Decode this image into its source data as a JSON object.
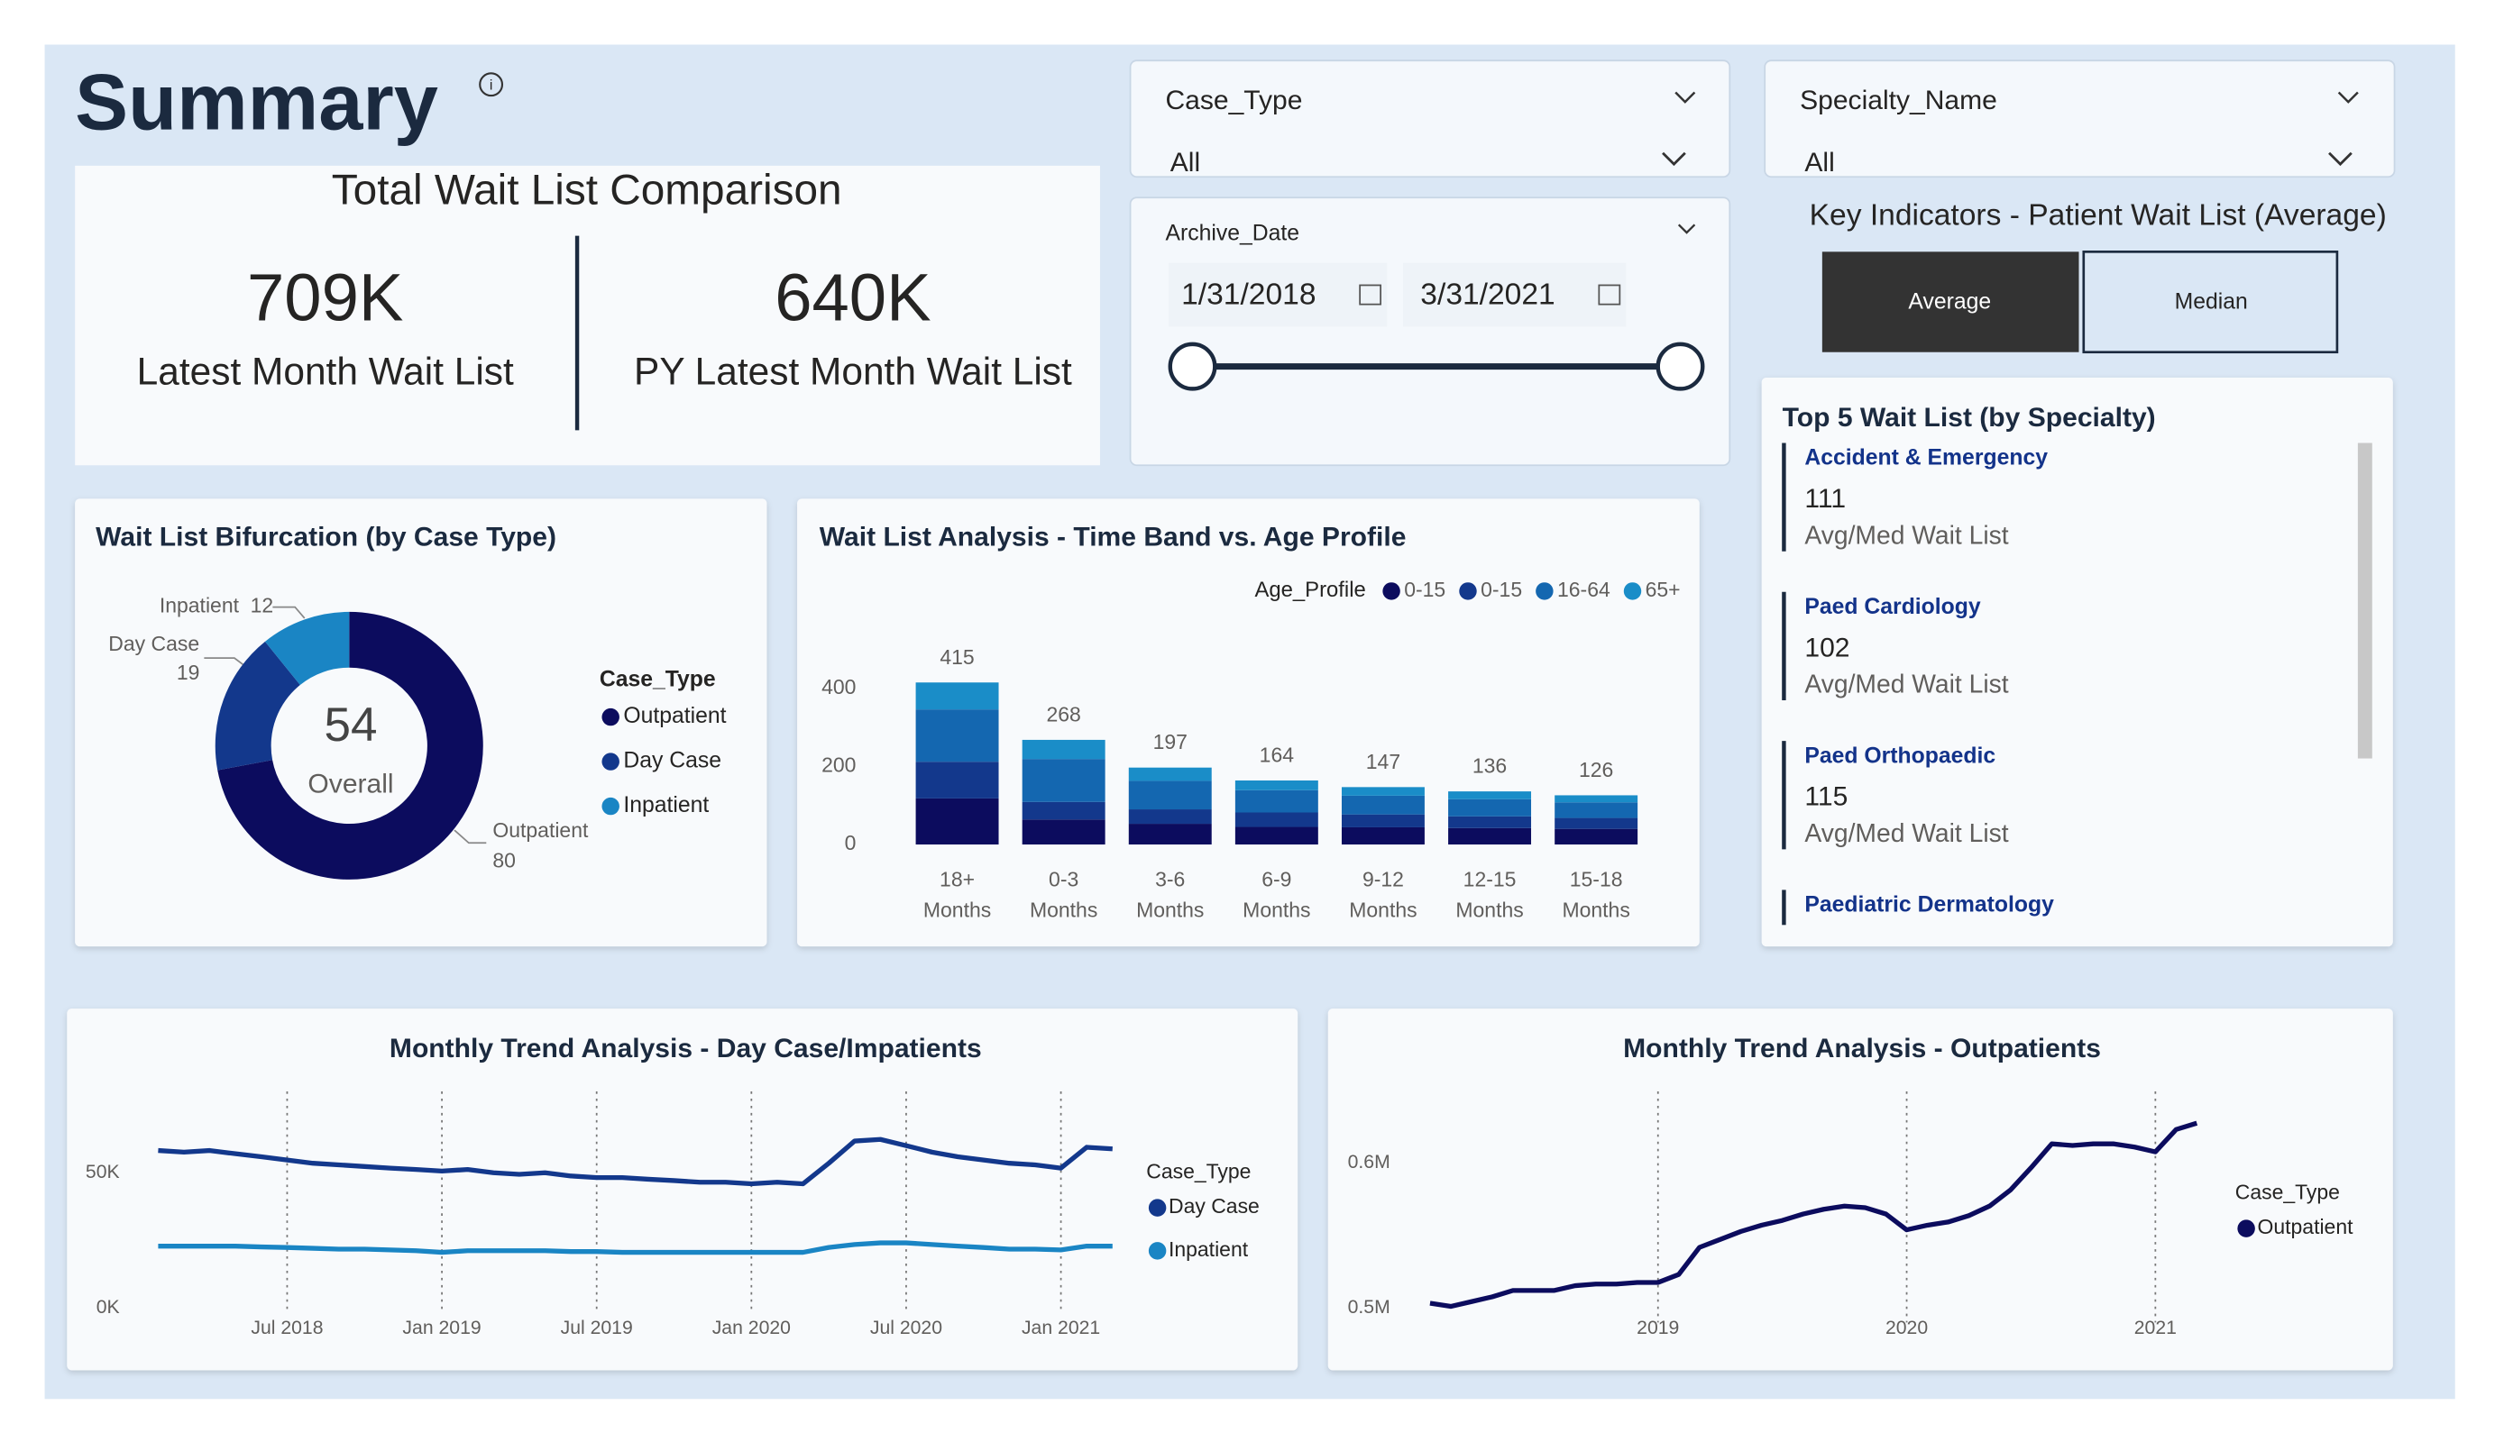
{
  "header": {
    "title": "Summary"
  },
  "kpi": {
    "title": "Total Wait List Comparison",
    "items": [
      {
        "value": "709K",
        "label": "Latest Month Wait List"
      },
      {
        "value": "640K",
        "label": "PY Latest Month Wait List"
      }
    ]
  },
  "filters": {
    "case_type": {
      "label": "Case_Type",
      "value": "All"
    },
    "specialty": {
      "label": "Specialty_Name",
      "value": "All"
    },
    "archive_date": {
      "label": "Archive_Date",
      "start": "1/31/2018",
      "end": "3/31/2021"
    }
  },
  "key_indicators": {
    "title": "Key Indicators - Patient Wait List (Average)",
    "buttons": [
      "Average",
      "Median"
    ]
  },
  "top5": {
    "title": "Top 5 Wait List (by Specialty)",
    "items": [
      {
        "name": "Accident & Emergency",
        "value": 111,
        "label": "Avg/Med Wait List"
      },
      {
        "name": "Paed Cardiology",
        "value": 102,
        "label": "Avg/Med Wait List"
      },
      {
        "name": "Paed Orthopaedic",
        "value": 115,
        "label": "Avg/Med Wait List"
      },
      {
        "name": "Paediatric Dermatology"
      }
    ]
  },
  "chart_data": [
    {
      "type": "pie",
      "title": "Wait List Bifurcation (by Case Type)",
      "categories": [
        "Outpatient",
        "Day Case",
        "Inpatient"
      ],
      "values": [
        80,
        19,
        12
      ],
      "colors": [
        "#0c0c5e",
        "#13388c",
        "#1a85c4"
      ],
      "center_value": 54,
      "center_label": "Overall",
      "legend_title": "Case_Type"
    },
    {
      "type": "bar",
      "stacked": true,
      "title": "Wait List Analysis - Time Band vs. Age Profile",
      "categories": [
        "18+ Months",
        "0-3 Months",
        "3-6 Months",
        "6-9 Months",
        "9-12 Months",
        "12-15 Months",
        "15-18 Months"
      ],
      "series": [
        {
          "name": "0-15",
          "color": "#0c0c5e",
          "values": [
            118,
            64,
            53,
            45,
            44,
            42,
            40
          ]
        },
        {
          "name": "0-15",
          "color": "#13388c",
          "values": [
            94,
            45,
            37,
            37,
            33,
            30,
            28
          ]
        },
        {
          "name": "16-64",
          "color": "#1467b0",
          "values": [
            134,
            110,
            73,
            57,
            48,
            44,
            40
          ]
        },
        {
          "name": "65+",
          "color": "#1a8dc8",
          "values": [
            69,
            49,
            34,
            25,
            22,
            20,
            18
          ]
        }
      ],
      "total_labels": [
        415,
        268,
        197,
        164,
        147,
        136,
        126
      ],
      "legend_title": "Age_Profile",
      "ylim": [
        0,
        450
      ],
      "yticks": [
        0,
        200,
        400
      ]
    },
    {
      "type": "line",
      "title": "Monthly Trend Analysis - Day Case/Impatients",
      "legend_title": "Case_Type",
      "x": [
        "2018-02",
        "2018-03",
        "2018-04",
        "2018-05",
        "2018-06",
        "2018-07",
        "2018-08",
        "2018-09",
        "2018-10",
        "2018-11",
        "2018-12",
        "2019-01",
        "2019-02",
        "2019-03",
        "2019-04",
        "2019-05",
        "2019-06",
        "2019-07",
        "2019-08",
        "2019-09",
        "2019-10",
        "2019-11",
        "2019-12",
        "2020-01",
        "2020-02",
        "2020-03",
        "2020-04",
        "2020-05",
        "2020-06",
        "2020-07",
        "2020-08",
        "2020-09",
        "2020-10",
        "2020-11",
        "2020-12",
        "2021-01",
        "2021-02",
        "2021-03"
      ],
      "series": [
        {
          "name": "Day Case",
          "color": "#13388c",
          "values": [
            58200,
            57600,
            58200,
            57000,
            55900,
            54700,
            53500,
            52900,
            52300,
            51700,
            51200,
            50600,
            51200,
            50000,
            49400,
            50000,
            48800,
            48200,
            48200,
            47600,
            47100,
            46500,
            46500,
            45900,
            46500,
            45900,
            53500,
            61700,
            62300,
            60000,
            57600,
            55900,
            54700,
            53500,
            52900,
            51700,
            59400,
            58800
          ]
        },
        {
          "name": "Inpatient",
          "color": "#1a85c4",
          "values": [
            22900,
            22900,
            22900,
            22900,
            22600,
            22400,
            22100,
            21800,
            21800,
            21500,
            21200,
            20600,
            21200,
            21200,
            21200,
            21200,
            20900,
            20900,
            20600,
            20600,
            20600,
            20600,
            20600,
            20600,
            20600,
            20600,
            22400,
            23500,
            24100,
            24100,
            23500,
            22900,
            22400,
            21800,
            21800,
            21500,
            22900,
            22900
          ]
        }
      ],
      "xlim": [
        "2018-01",
        "2021-04"
      ],
      "xticks": [
        {
          "value": "2018-07",
          "label": "Jul 2018"
        },
        {
          "value": "2019-01",
          "label": "Jan 2019"
        },
        {
          "value": "2019-07",
          "label": "Jul 2019"
        },
        {
          "value": "2020-01",
          "label": "Jan 2020"
        },
        {
          "value": "2020-07",
          "label": "Jul 2020"
        },
        {
          "value": "2021-01",
          "label": "Jan 2021"
        }
      ],
      "ylim": [
        0,
        70000
      ],
      "yticks": [
        {
          "value": 0,
          "label": "0K"
        },
        {
          "value": 50000,
          "label": "50K"
        }
      ]
    },
    {
      "type": "line",
      "title": "Monthly Trend Analysis - Outpatients",
      "legend_title": "Case_Type",
      "x": [
        "2018-02",
        "2018-03",
        "2018-04",
        "2018-05",
        "2018-06",
        "2018-07",
        "2018-08",
        "2018-09",
        "2018-10",
        "2018-11",
        "2018-12",
        "2019-01",
        "2019-02",
        "2019-03",
        "2019-04",
        "2019-05",
        "2019-06",
        "2019-07",
        "2019-08",
        "2019-09",
        "2019-10",
        "2019-11",
        "2019-12",
        "2020-01",
        "2020-02",
        "2020-03",
        "2020-04",
        "2020-05",
        "2020-06",
        "2020-07",
        "2020-08",
        "2020-09",
        "2020-10",
        "2020-11",
        "2020-12",
        "2021-01",
        "2021-02",
        "2021-03"
      ],
      "series": [
        {
          "name": "Outpatient",
          "color": "#0c0c5e",
          "values": [
            503300,
            501100,
            504400,
            507700,
            512100,
            512100,
            512100,
            515400,
            516500,
            516500,
            517600,
            517600,
            523100,
            541800,
            547300,
            552800,
            557100,
            560400,
            564800,
            568100,
            570300,
            569200,
            564800,
            553900,
            557100,
            559300,
            563700,
            570300,
            581300,
            596700,
            613200,
            612100,
            613200,
            613200,
            611000,
            607700,
            623100,
            627500
          ]
        }
      ],
      "xlim": [
        "2018-01",
        "2021-04"
      ],
      "xticks": [
        {
          "value": "2019-01",
          "label": "2019"
        },
        {
          "value": "2020-01",
          "label": "2020"
        },
        {
          "value": "2021-01",
          "label": "2021"
        }
      ],
      "ylim": [
        490000,
        640000
      ],
      "yticks": [
        {
          "value": 500000,
          "label": "0.5M"
        },
        {
          "value": 600000,
          "label": "0.6M"
        }
      ]
    }
  ]
}
